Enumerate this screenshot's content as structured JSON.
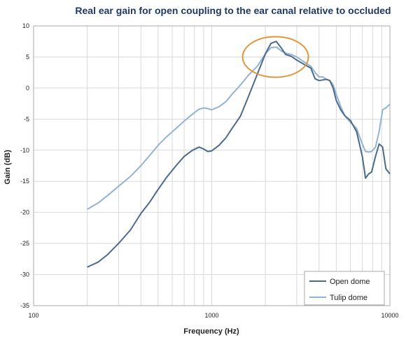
{
  "chart_data": {
    "type": "line",
    "title": "Real ear gain for open coupling to the ear canal relative to occluded",
    "xlabel": "Frequency (Hz)",
    "ylabel": "Gain (dB)",
    "x_scale": "log",
    "xlim": [
      100,
      10000
    ],
    "ylim": [
      -35,
      10
    ],
    "x_tick_labels": [
      "100",
      "1000",
      "10000"
    ],
    "x_ticks": [
      100,
      1000,
      10000
    ],
    "y_ticks": [
      10,
      5,
      0,
      -5,
      -10,
      -15,
      -20,
      -25,
      -30,
      -35
    ],
    "grid": true,
    "legend_position": "bottom-right",
    "colors": {
      "open_dome": "#4a6a8e",
      "tulip_dome": "#93b3d4",
      "highlight": "#e0963a",
      "grid": "#d9d9d9"
    },
    "annotations": [
      {
        "shape": "ellipse",
        "note": "peak region",
        "center_x": 2280,
        "center_y": 5
      }
    ],
    "series": [
      {
        "name": "Open dome",
        "x": [
          200,
          230,
          260,
          300,
          350,
          400,
          450,
          500,
          560,
          630,
          700,
          780,
          850,
          900,
          950,
          1000,
          1100,
          1200,
          1300,
          1450,
          1600,
          1800,
          2000,
          2150,
          2300,
          2450,
          2600,
          2800,
          3000,
          3300,
          3600,
          3800,
          4000,
          4200,
          4400,
          4600,
          4800,
          5000,
          5300,
          5600,
          6000,
          6500,
          7000,
          7300,
          7600,
          7900,
          8300,
          8700,
          9100,
          9500,
          10000
        ],
        "y": [
          -28.8,
          -28,
          -26.8,
          -25,
          -22.8,
          -20.2,
          -18.3,
          -16.3,
          -14.3,
          -12.5,
          -11,
          -10,
          -9.5,
          -9.8,
          -10.2,
          -10.1,
          -9.2,
          -8,
          -6.5,
          -4.5,
          -1.5,
          2.2,
          5.5,
          7.2,
          7.5,
          6.5,
          5.4,
          5.1,
          4.5,
          3.8,
          3.2,
          1.5,
          1.2,
          1.3,
          1.4,
          1.2,
          0,
          -2,
          -3.5,
          -4.5,
          -5.2,
          -7,
          -11,
          -14.5,
          -13.8,
          -13.5,
          -11,
          -9,
          -9.5,
          -13,
          -13.8
        ]
      },
      {
        "name": "Tulip dome",
        "x": [
          200,
          230,
          260,
          300,
          350,
          400,
          450,
          500,
          560,
          630,
          700,
          780,
          850,
          900,
          950,
          1000,
          1100,
          1200,
          1300,
          1450,
          1600,
          1800,
          2000,
          2150,
          2300,
          2450,
          2600,
          2800,
          3000,
          3300,
          3600,
          3800,
          4000,
          4200,
          4400,
          4600,
          4800,
          5000,
          5300,
          5600,
          6000,
          6500,
          7000,
          7300,
          7600,
          7900,
          8300,
          8700,
          9100,
          9500,
          10000
        ],
        "y": [
          -19.5,
          -18.5,
          -17.3,
          -15.8,
          -14.2,
          -12.5,
          -10.8,
          -9.2,
          -7.8,
          -6.5,
          -5.3,
          -4.2,
          -3.4,
          -3.2,
          -3.3,
          -3.5,
          -3,
          -2.2,
          -1,
          0.5,
          2,
          3.5,
          5.5,
          6.5,
          6.6,
          6,
          5.6,
          5.4,
          5,
          4.2,
          3.5,
          2.5,
          1.8,
          1.8,
          1.4,
          1.2,
          0.5,
          -1,
          -3,
          -4.5,
          -5.5,
          -6.5,
          -9,
          -10.2,
          -10.3,
          -10.2,
          -9.5,
          -7,
          -3.5,
          -3.2,
          -2.6
        ]
      }
    ]
  }
}
